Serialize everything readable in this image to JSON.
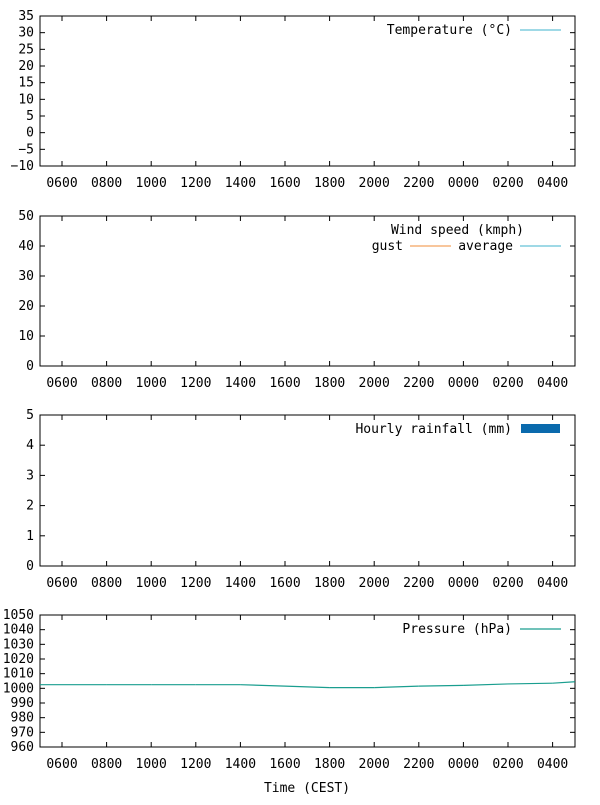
{
  "chart_data": [
    {
      "type": "line",
      "ylim": [
        -10,
        35
      ],
      "yticks": [
        -10,
        -5,
        0,
        5,
        10,
        15,
        20,
        25,
        30,
        35
      ],
      "ytick_labels": [
        "−10",
        "−5",
        "0",
        "5",
        "10",
        "15",
        "20",
        "25",
        "30",
        "35"
      ],
      "xticks": [
        "0600",
        "0800",
        "1000",
        "1200",
        "1400",
        "1600",
        "1800",
        "2000",
        "2200",
        "0000",
        "0200",
        "0400"
      ],
      "xlabel": "",
      "legend_position": "top-right",
      "series": [
        {
          "name": "Temperature (°C)",
          "color": "#66c2d7",
          "style": "line",
          "x": [],
          "y": []
        }
      ]
    },
    {
      "type": "line",
      "ylim": [
        0,
        50
      ],
      "yticks": [
        0,
        10,
        20,
        30,
        40,
        50
      ],
      "ytick_labels": [
        "0",
        "10",
        "20",
        "30",
        "40",
        "50"
      ],
      "xticks": [
        "0600",
        "0800",
        "1000",
        "1200",
        "1400",
        "1600",
        "1800",
        "2000",
        "2200",
        "0000",
        "0200",
        "0400"
      ],
      "xlabel": "",
      "legend_title": "Wind speed (kmph)",
      "legend_position": "top-right",
      "series": [
        {
          "name": "gust",
          "color": "#f4a460",
          "style": "line",
          "x": [],
          "y": []
        },
        {
          "name": "average",
          "color": "#66c2d7",
          "style": "line",
          "x": [],
          "y": []
        }
      ]
    },
    {
      "type": "bar",
      "ylim": [
        0,
        5
      ],
      "yticks": [
        0,
        1,
        2,
        3,
        4,
        5
      ],
      "ytick_labels": [
        "0",
        "1",
        "2",
        "3",
        "4",
        "5"
      ],
      "xticks": [
        "0600",
        "0800",
        "1000",
        "1200",
        "1400",
        "1600",
        "1800",
        "2000",
        "2200",
        "0000",
        "0200",
        "0400"
      ],
      "xlabel": "",
      "legend_position": "top-right",
      "series": [
        {
          "name": "Hourly rainfall (mm)",
          "color": "#0a6aad",
          "style": "bar",
          "x": [],
          "y": []
        }
      ]
    },
    {
      "type": "line",
      "ylim": [
        960,
        1050
      ],
      "yticks": [
        960,
        970,
        980,
        990,
        1000,
        1010,
        1020,
        1030,
        1040,
        1050
      ],
      "ytick_labels": [
        "960",
        "970",
        "980",
        "990",
        "1000",
        "1010",
        "1020",
        "1030",
        "1040",
        "1050"
      ],
      "xticks": [
        "0600",
        "0800",
        "1000",
        "1200",
        "1400",
        "1600",
        "1800",
        "2000",
        "2200",
        "0000",
        "0200",
        "0400"
      ],
      "xlabel": "Time (CEST)",
      "legend_position": "top-right",
      "series": [
        {
          "name": "Pressure (hPa)",
          "color": "#1a9e8f",
          "style": "line",
          "x": [
            0,
            1,
            2,
            3,
            4,
            5,
            6,
            7,
            8,
            9,
            10,
            11,
            11.5
          ],
          "y": [
            1002.5,
            1002.5,
            1002.5,
            1002.5,
            1002.5,
            1001.5,
            1000.5,
            1000.5,
            1001.5,
            1002,
            1003,
            1003.5,
            1004.5
          ]
        }
      ]
    }
  ]
}
